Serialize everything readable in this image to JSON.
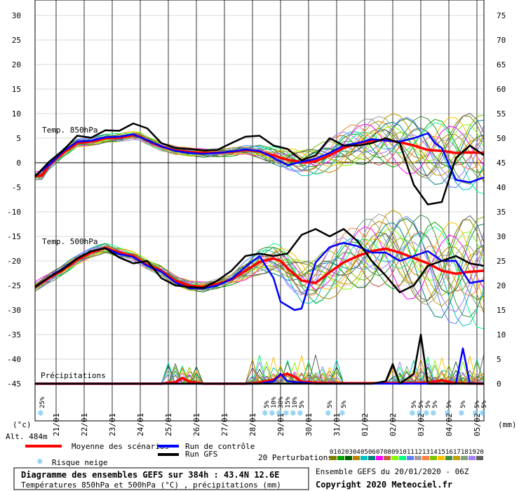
{
  "chart_data": {
    "type": "line",
    "title": "Diagramme des ensembles GEFS sur 384h : 43.4N 12.6E",
    "subtitle": "Températures 850hPa et 500hPa (°C) , précipitations (mm)",
    "altitude": "Alt. 484m",
    "left_axis_unit": "(°c)",
    "right_axis_unit": "(mm)",
    "left_ticks": [
      30,
      25,
      20,
      15,
      10,
      5,
      0,
      -5,
      -10,
      -15,
      -20,
      -25,
      -30,
      -35,
      -40,
      -45
    ],
    "right_ticks": [
      75,
      70,
      65,
      60,
      55,
      50,
      45,
      40,
      35,
      30,
      25,
      20,
      15,
      10,
      5,
      0
    ],
    "ylim": [
      -45,
      30
    ],
    "xlim_hours": [
      0,
      384
    ],
    "date_labels": [
      "21/01",
      "22/01",
      "23/01",
      "24/01",
      "25/01",
      "26/01",
      "27/01",
      "28/01",
      "29/01",
      "30/01",
      "31/01",
      "01/02",
      "02/02",
      "03/02",
      "04/02",
      "05/02"
    ],
    "section_labels": [
      "Temp. 850hPa",
      "Temp. 500hPa",
      "Précipitations"
    ],
    "snow_risk": [
      {
        "hour": 6,
        "label": "25%"
      },
      {
        "hour": 198,
        "label": "5%"
      },
      {
        "hour": 204,
        "label": "10%"
      },
      {
        "hour": 210,
        "label": "30%"
      },
      {
        "hour": 216,
        "label": "15%"
      },
      {
        "hour": 222,
        "label": "10%"
      },
      {
        "hour": 228,
        "label": "5%"
      },
      {
        "hour": 252,
        "label": "5%"
      },
      {
        "hour": 264,
        "label": "5%"
      },
      {
        "hour": 324,
        "label": "5%"
      },
      {
        "hour": 330,
        "label": "5%"
      },
      {
        "hour": 336,
        "label": "5%"
      },
      {
        "hour": 342,
        "label": "5%"
      },
      {
        "hour": 354,
        "label": "5%"
      },
      {
        "hour": 366,
        "label": "5%"
      },
      {
        "hour": 378,
        "label": "5%"
      },
      {
        "hour": 384,
        "label": "5%"
      }
    ],
    "series": [
      {
        "name": "Moyenne des scénarios",
        "color": "#ff0000",
        "group": "t850",
        "points": [
          [
            0,
            -2.7
          ],
          [
            6,
            -2.6
          ],
          [
            12,
            -0.5
          ],
          [
            24,
            2
          ],
          [
            36,
            4
          ],
          [
            48,
            4.3
          ],
          [
            60,
            5
          ],
          [
            72,
            5.1
          ],
          [
            84,
            5.6
          ],
          [
            90,
            5.3
          ],
          [
            96,
            4.5
          ],
          [
            108,
            3.3
          ],
          [
            120,
            2.5
          ],
          [
            132,
            2.2
          ],
          [
            144,
            2
          ],
          [
            156,
            2
          ],
          [
            168,
            2.2
          ],
          [
            180,
            2.6
          ],
          [
            192,
            2.3
          ],
          [
            198,
            1.8
          ],
          [
            204,
            1.5
          ],
          [
            210,
            1
          ],
          [
            216,
            0.6
          ],
          [
            222,
            0.4
          ],
          [
            228,
            0
          ],
          [
            240,
            0.3
          ],
          [
            252,
            1.5
          ],
          [
            264,
            3
          ],
          [
            276,
            4
          ],
          [
            288,
            4.5
          ],
          [
            300,
            4.6
          ],
          [
            312,
            4.2
          ],
          [
            324,
            3.5
          ],
          [
            336,
            2.6
          ],
          [
            348,
            2.4
          ],
          [
            360,
            2
          ],
          [
            372,
            2.1
          ],
          [
            384,
            2
          ]
        ]
      },
      {
        "name": "Run de contrôle",
        "color": "#0000ff",
        "group": "t850",
        "points": [
          [
            0,
            -2.7
          ],
          [
            12,
            -0.4
          ],
          [
            24,
            2.3
          ],
          [
            36,
            4.3
          ],
          [
            48,
            4.5
          ],
          [
            60,
            5.2
          ],
          [
            72,
            5.3
          ],
          [
            84,
            5.8
          ],
          [
            96,
            4.6
          ],
          [
            108,
            3.3
          ],
          [
            120,
            2.4
          ],
          [
            132,
            2
          ],
          [
            144,
            1.8
          ],
          [
            156,
            2
          ],
          [
            168,
            2.3
          ],
          [
            180,
            2.7
          ],
          [
            192,
            2.4
          ],
          [
            204,
            1
          ],
          [
            216,
            -0.5
          ],
          [
            228,
            0.2
          ],
          [
            240,
            0.8
          ],
          [
            252,
            2
          ],
          [
            264,
            3.5
          ],
          [
            276,
            4
          ],
          [
            288,
            4.8
          ],
          [
            300,
            4.5
          ],
          [
            312,
            4.3
          ],
          [
            324,
            5
          ],
          [
            336,
            6
          ],
          [
            342,
            4
          ],
          [
            348,
            3
          ],
          [
            360,
            -3.5
          ],
          [
            372,
            -4
          ],
          [
            384,
            -3
          ]
        ]
      },
      {
        "name": "Run GFS",
        "color": "#000000",
        "group": "t850",
        "points": [
          [
            0,
            -2.8
          ],
          [
            12,
            0.2
          ],
          [
            24,
            2.5
          ],
          [
            36,
            5.5
          ],
          [
            48,
            5.1
          ],
          [
            60,
            6.6
          ],
          [
            72,
            6.5
          ],
          [
            84,
            8
          ],
          [
            96,
            7
          ],
          [
            108,
            4
          ],
          [
            120,
            3
          ],
          [
            132,
            2.8
          ],
          [
            144,
            2.5
          ],
          [
            156,
            2.6
          ],
          [
            168,
            4
          ],
          [
            180,
            5.3
          ],
          [
            192,
            5.5
          ],
          [
            204,
            3.5
          ],
          [
            216,
            2.8
          ],
          [
            228,
            0.5
          ],
          [
            240,
            1.5
          ],
          [
            252,
            5
          ],
          [
            264,
            3.5
          ],
          [
            276,
            3.5
          ],
          [
            288,
            4
          ],
          [
            300,
            5
          ],
          [
            312,
            4
          ],
          [
            324,
            -4.5
          ],
          [
            336,
            -8.5
          ],
          [
            348,
            -8
          ],
          [
            360,
            1
          ],
          [
            372,
            3.5
          ],
          [
            384,
            1.5
          ]
        ]
      },
      {
        "name": "Moyenne des scénarios",
        "color": "#ff0000",
        "group": "t500",
        "points": [
          [
            0,
            -25.3
          ],
          [
            12,
            -23.5
          ],
          [
            24,
            -21.8
          ],
          [
            36,
            -19.8
          ],
          [
            48,
            -18.3
          ],
          [
            60,
            -17.3
          ],
          [
            72,
            -18.3
          ],
          [
            84,
            -19
          ],
          [
            96,
            -20.8
          ],
          [
            108,
            -22
          ],
          [
            120,
            -24
          ],
          [
            132,
            -25
          ],
          [
            144,
            -25.3
          ],
          [
            156,
            -24.7
          ],
          [
            168,
            -23.8
          ],
          [
            180,
            -22
          ],
          [
            192,
            -20.2
          ],
          [
            204,
            -19.5
          ],
          [
            210,
            -20
          ],
          [
            216,
            -21.5
          ],
          [
            228,
            -24
          ],
          [
            240,
            -24.5
          ],
          [
            252,
            -22.3
          ],
          [
            264,
            -20.3
          ],
          [
            276,
            -19
          ],
          [
            288,
            -18
          ],
          [
            300,
            -17.5
          ],
          [
            312,
            -18.3
          ],
          [
            324,
            -19.4
          ],
          [
            336,
            -20.5
          ],
          [
            348,
            -22
          ],
          [
            360,
            -22.6
          ],
          [
            372,
            -22.2
          ],
          [
            384,
            -22
          ]
        ]
      },
      {
        "name": "Run de contrôle",
        "color": "#0000ff",
        "group": "t500",
        "points": [
          [
            0,
            -25.3
          ],
          [
            12,
            -23.3
          ],
          [
            24,
            -21.5
          ],
          [
            36,
            -19.5
          ],
          [
            48,
            -18
          ],
          [
            60,
            -17.4
          ],
          [
            72,
            -18.6
          ],
          [
            84,
            -19.2
          ],
          [
            96,
            -21
          ],
          [
            108,
            -22.2
          ],
          [
            120,
            -24.4
          ],
          [
            132,
            -25.6
          ],
          [
            144,
            -25.6
          ],
          [
            156,
            -25
          ],
          [
            168,
            -23.7
          ],
          [
            180,
            -21.2
          ],
          [
            192,
            -19
          ],
          [
            204,
            -23.5
          ],
          [
            210,
            -28.3
          ],
          [
            222,
            -30
          ],
          [
            228,
            -29.7
          ],
          [
            240,
            -20.3
          ],
          [
            252,
            -17.2
          ],
          [
            264,
            -16.3
          ],
          [
            276,
            -17
          ],
          [
            288,
            -18.3
          ],
          [
            300,
            -18.3
          ],
          [
            312,
            -20
          ],
          [
            324,
            -19
          ],
          [
            336,
            -18
          ],
          [
            348,
            -20
          ],
          [
            360,
            -20
          ],
          [
            372,
            -24.5
          ],
          [
            384,
            -24
          ]
        ]
      },
      {
        "name": "Run GFS",
        "color": "#000000",
        "group": "t500",
        "points": [
          [
            0,
            -25.3
          ],
          [
            12,
            -23.3
          ],
          [
            24,
            -21.7
          ],
          [
            36,
            -19.5
          ],
          [
            48,
            -18
          ],
          [
            60,
            -17.4
          ],
          [
            72,
            -19.3
          ],
          [
            84,
            -20.5
          ],
          [
            96,
            -20
          ],
          [
            108,
            -23.5
          ],
          [
            120,
            -25
          ],
          [
            132,
            -25.3
          ],
          [
            144,
            -25.5
          ],
          [
            156,
            -24
          ],
          [
            168,
            -22
          ],
          [
            180,
            -19
          ],
          [
            192,
            -18.5
          ],
          [
            204,
            -19
          ],
          [
            216,
            -18.5
          ],
          [
            228,
            -14.7
          ],
          [
            240,
            -13.5
          ],
          [
            252,
            -15
          ],
          [
            264,
            -13.5
          ],
          [
            276,
            -16
          ],
          [
            288,
            -20
          ],
          [
            300,
            -23
          ],
          [
            312,
            -26.4
          ],
          [
            324,
            -25
          ],
          [
            336,
            -21
          ],
          [
            348,
            -20
          ],
          [
            360,
            -19
          ],
          [
            372,
            -20.5
          ],
          [
            384,
            -21
          ]
        ]
      },
      {
        "name": "Moyenne des scénarios",
        "color": "#ff0000",
        "group": "precip",
        "points": [
          [
            0,
            -45
          ],
          [
            108,
            -45
          ],
          [
            120,
            -44.7
          ],
          [
            126,
            -43.8
          ],
          [
            132,
            -44.6
          ],
          [
            144,
            -45
          ],
          [
            180,
            -45
          ],
          [
            192,
            -44.8
          ],
          [
            204,
            -44.2
          ],
          [
            210,
            -43.3
          ],
          [
            216,
            -43
          ],
          [
            222,
            -43.6
          ],
          [
            228,
            -44.6
          ],
          [
            240,
            -44.8
          ],
          [
            264,
            -44.9
          ],
          [
            324,
            -44.9
          ],
          [
            336,
            -44.8
          ],
          [
            348,
            -44.3
          ],
          [
            360,
            -44.9
          ],
          [
            384,
            -45
          ]
        ]
      },
      {
        "name": "Run de contrôle",
        "color": "#0000ff",
        "group": "precip",
        "points": [
          [
            0,
            -45
          ],
          [
            192,
            -45
          ],
          [
            204,
            -44.5
          ],
          [
            210,
            -43
          ],
          [
            216,
            -44.5
          ],
          [
            240,
            -45
          ],
          [
            360,
            -45
          ],
          [
            366,
            -37.8
          ],
          [
            372,
            -45
          ],
          [
            384,
            -45
          ]
        ]
      },
      {
        "name": "Run GFS",
        "color": "#000000",
        "group": "precip",
        "points": [
          [
            0,
            -45
          ],
          [
            288,
            -45
          ],
          [
            300,
            -44.5
          ],
          [
            306,
            -41
          ],
          [
            312,
            -45
          ],
          [
            324,
            -43
          ],
          [
            330,
            -35
          ],
          [
            336,
            -45
          ],
          [
            384,
            -45
          ]
        ]
      }
    ]
  },
  "legend": {
    "mean_label": "Moyenne des scénarios",
    "control_label": "Run de contrôle",
    "gfs_label": "Run GFS",
    "snow_label": "Risque neige",
    "perturbations_label": "20 Perturbations",
    "perturbation_ids": [
      "01",
      "02",
      "03",
      "04",
      "05",
      "06",
      "07",
      "08",
      "09",
      "10",
      "11",
      "12",
      "13",
      "14",
      "15",
      "16",
      "17",
      "18",
      "19",
      "20"
    ],
    "perturbation_colors": [
      "#808000",
      "#00a000",
      "#006000",
      "#c08000",
      "#00c0c0",
      "#008080",
      "#ff00ff",
      "#c06040",
      "#80ff00",
      "#00ff80",
      "#6080ff",
      "#a0a0a0",
      "#ff8040",
      "#80c000",
      "#ffc000",
      "#409040",
      "#c0a000",
      "#80a080",
      "#a080ff",
      "#606060"
    ],
    "run_label": "Ensemble GEFS du 20/01/2020 - 06Z",
    "copyright": "Copyright 2020 Meteociel.fr"
  },
  "colors": {
    "mean": "#ff0000",
    "control": "#0000ff",
    "gfs": "#000000",
    "grid": "#000000",
    "snow": "#55b8ee"
  }
}
